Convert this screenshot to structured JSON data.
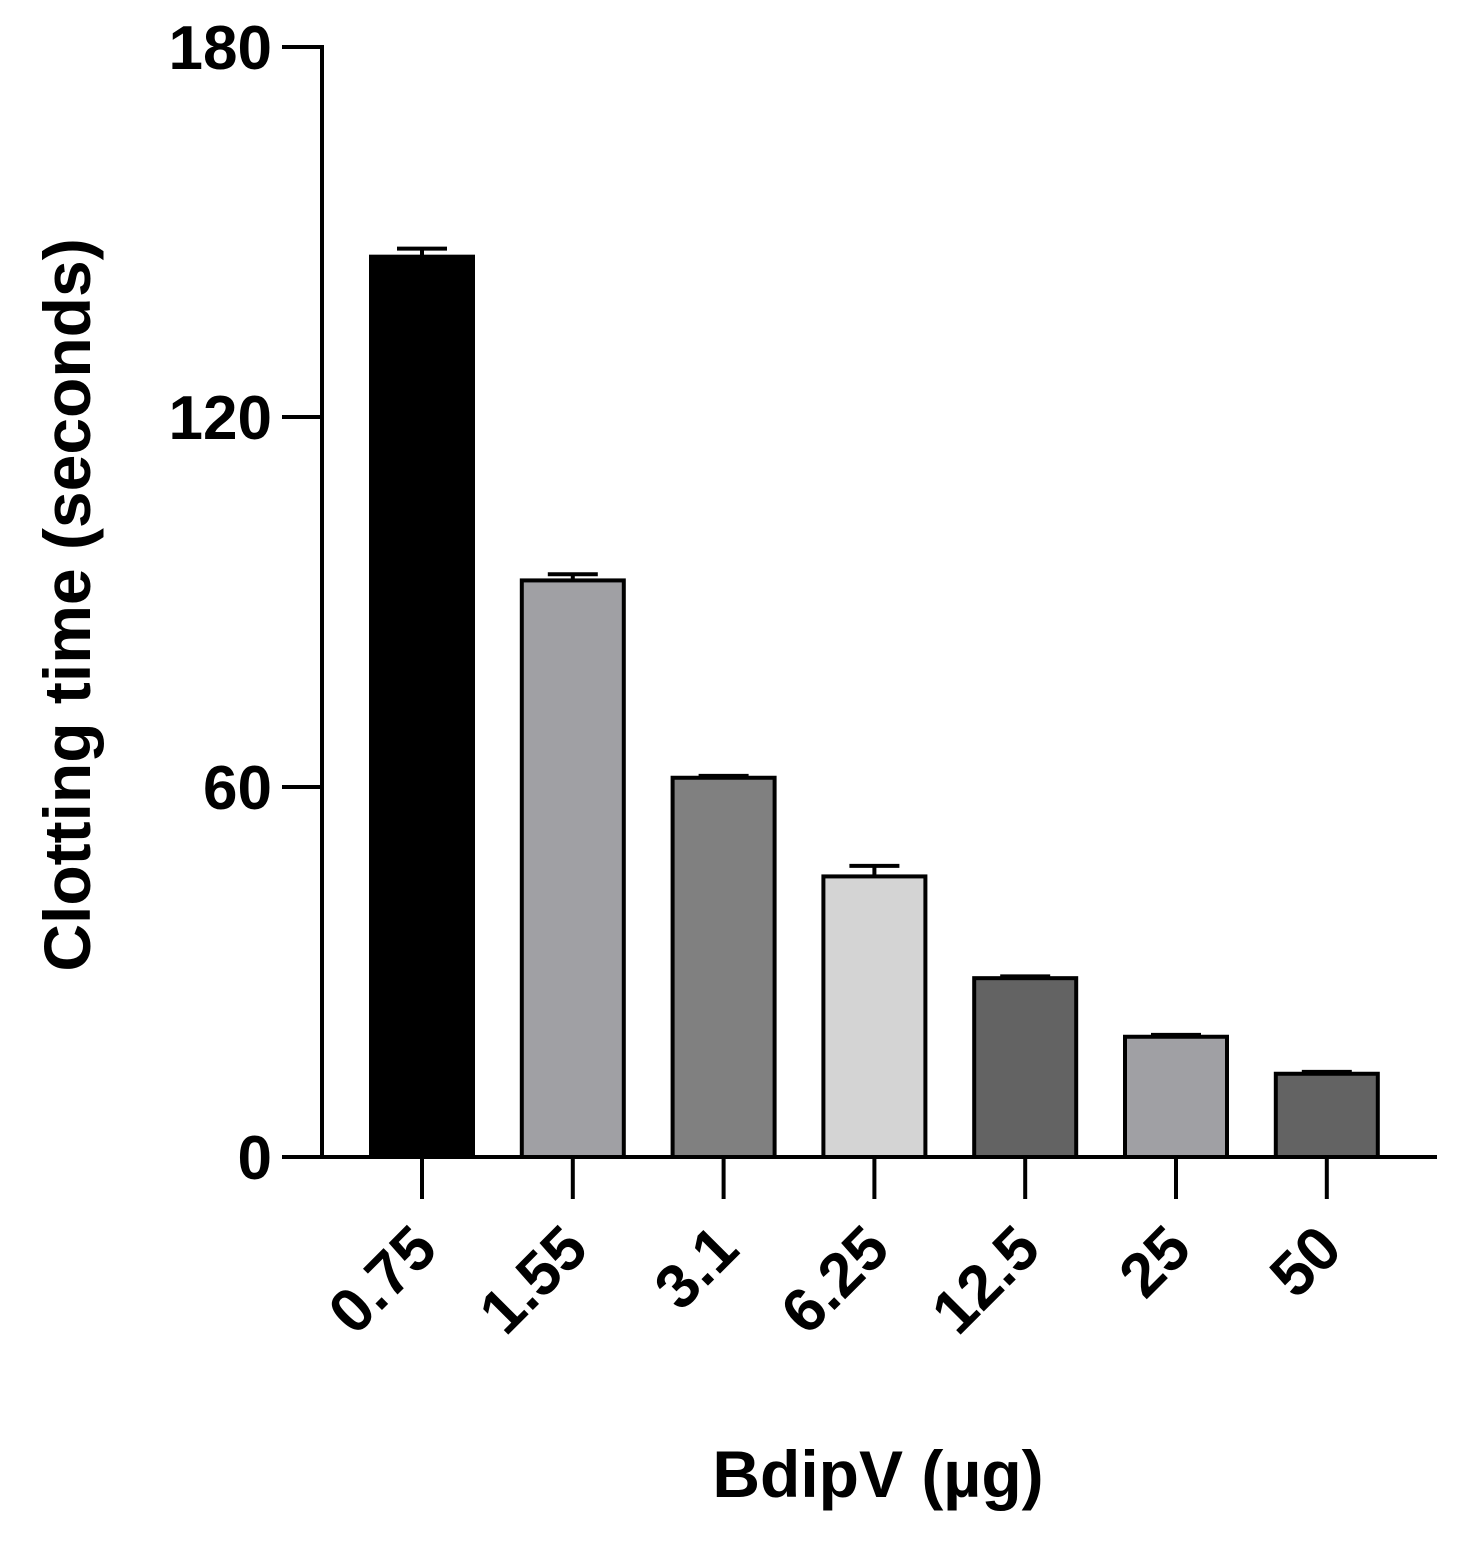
{
  "chart_data": {
    "type": "bar",
    "title": "",
    "xlabel": "BdipV (µg)",
    "ylabel": "Clotting time (seconds)",
    "categories": [
      "0.75",
      "1.55",
      "3.1",
      "6.25",
      "12.5",
      "25",
      "50"
    ],
    "values": [
      146,
      93.5,
      61.5,
      45.5,
      29,
      19.5,
      13.5
    ],
    "errors": [
      1.3,
      1.0,
      0.3,
      1.7,
      0.3,
      0.3,
      0.3
    ],
    "bar_colors": [
      "#000000",
      "#a0a0a4",
      "#808080",
      "#d4d4d4",
      "#636363",
      "#a0a0a4",
      "#636363"
    ],
    "ylim": [
      0,
      180
    ],
    "yticks": [
      "0",
      "60",
      "120",
      "180"
    ],
    "grid": false,
    "legend": "none"
  }
}
